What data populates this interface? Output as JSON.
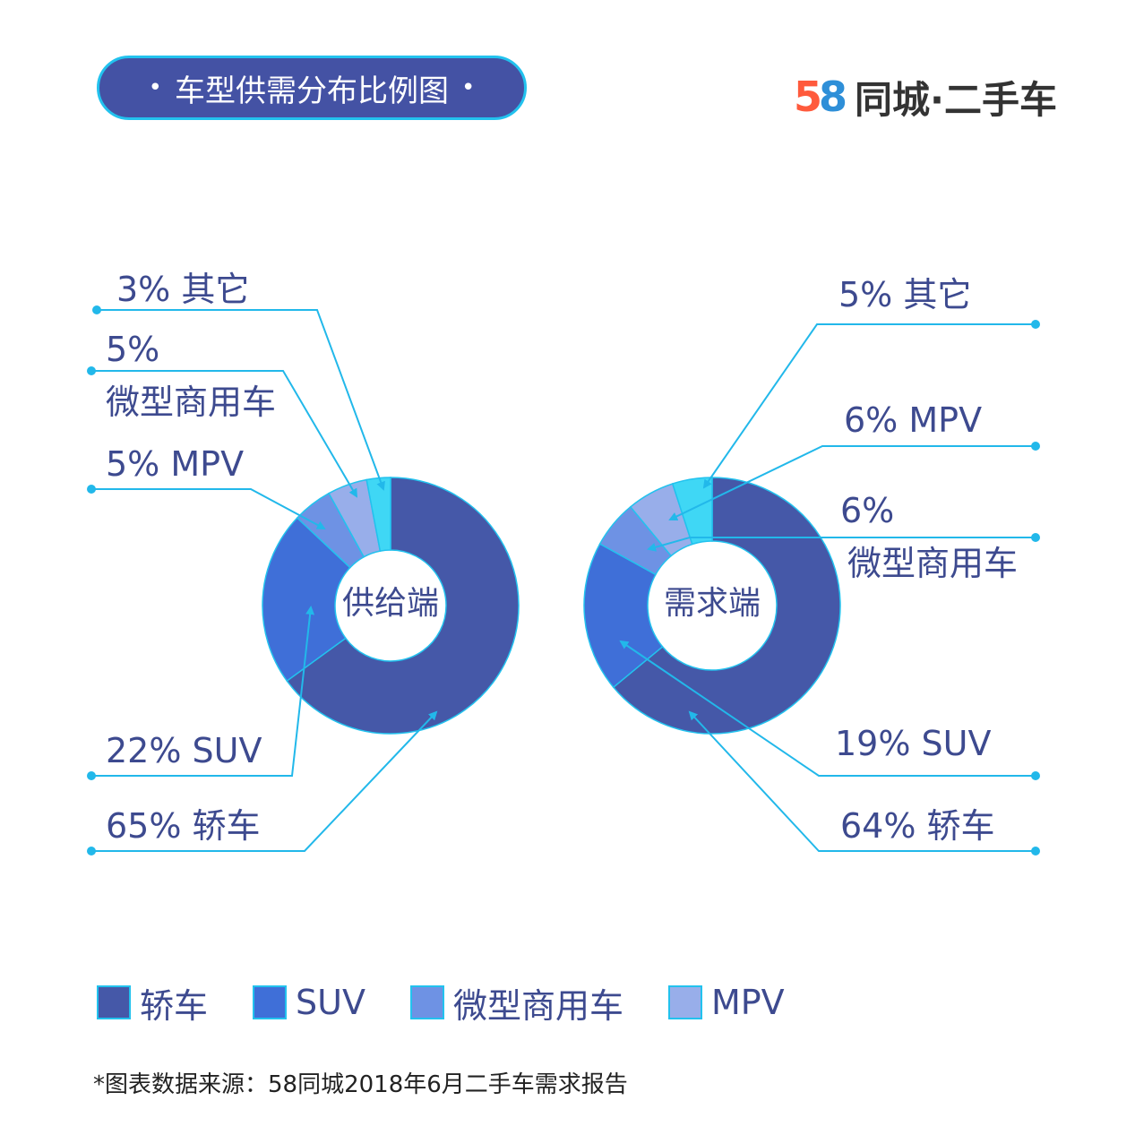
{
  "header": {
    "title": "车型供需分布比例图",
    "dot": "•",
    "brand_5": "5",
    "brand_8": "8",
    "brand_text": "同城·二手车"
  },
  "chart_data": [
    {
      "type": "pie",
      "center_label": "供给端",
      "categories": [
        "轿车",
        "SUV",
        "微型商用车",
        "MPV",
        "其它"
      ],
      "values": [
        65,
        22,
        5,
        5,
        3
      ],
      "labels": [
        "65% 轿车",
        "22% SUV",
        "5% 微型商用车",
        "5% MPV",
        "3% 其它"
      ]
    },
    {
      "type": "pie",
      "center_label": "需求端",
      "categories": [
        "轿车",
        "SUV",
        "微型商用车",
        "MPV",
        "其它"
      ],
      "values": [
        64,
        19,
        6,
        6,
        5
      ],
      "labels": [
        "64%  轿车",
        "19% SUV",
        "6% 微型商用车",
        "6% MPV",
        "5% 其它"
      ]
    }
  ],
  "colors": {
    "轿车": "#4558a8",
    "SUV": "#3f6fd8",
    "微型商用车": "#6e92e4",
    "MPV": "#98aeea",
    "其它": "#3fd7f5",
    "leader": "#22b8ea",
    "label_text": "#3d4a8f"
  },
  "legend": {
    "items": [
      {
        "label": "轿车",
        "color": "#4558a8"
      },
      {
        "label": "SUV",
        "color": "#3f6fd8"
      },
      {
        "label": "微型商用车",
        "color": "#6e92e4"
      },
      {
        "label": "MPV",
        "color": "#98aeea"
      }
    ]
  },
  "footer": {
    "source": "*图表数据来源：58同城2018年6月二手车需求报告"
  }
}
